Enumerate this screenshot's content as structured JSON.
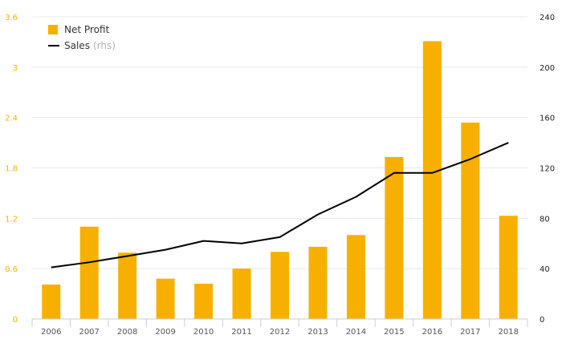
{
  "chart_data": {
    "type": "bar+line",
    "categories": [
      "2006",
      "2007",
      "2008",
      "2009",
      "2010",
      "2011",
      "2012",
      "2013",
      "2014",
      "2015",
      "2016",
      "2017",
      "2018"
    ],
    "series": [
      {
        "name": "Net Profit",
        "type": "bar",
        "axis": "left",
        "color": "#f8b000",
        "values": [
          0.41,
          1.1,
          0.79,
          0.48,
          0.42,
          0.6,
          0.8,
          0.86,
          1.0,
          1.93,
          3.31,
          2.34,
          1.23
        ]
      },
      {
        "name": "Sales",
        "name_note": "(rhs)",
        "type": "line",
        "axis": "right",
        "color": "#000000",
        "values": [
          41,
          45,
          50,
          55,
          62,
          60,
          65,
          83,
          97,
          116,
          116,
          127,
          140
        ]
      }
    ],
    "y_left": {
      "ticks": [
        "0",
        "0.6",
        "1.2",
        "1.8",
        "2.4",
        "3",
        "3.6"
      ],
      "ylim": [
        0,
        3.6
      ],
      "tick_color": "#f8b000"
    },
    "y_right": {
      "ticks": [
        "0",
        "40",
        "80",
        "120",
        "160",
        "200",
        "240"
      ],
      "ylim": [
        0,
        240
      ]
    },
    "grid": true,
    "legend_position": "top-left"
  }
}
